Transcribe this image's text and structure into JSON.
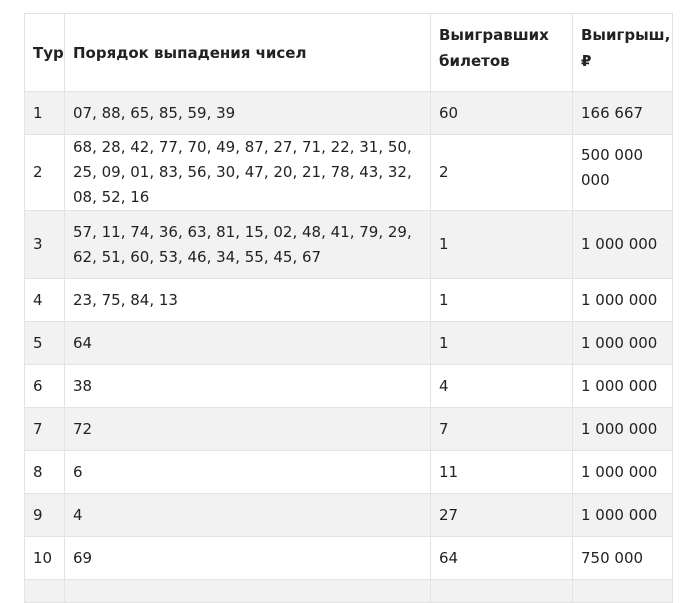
{
  "table": {
    "headers": {
      "tour": "Тур",
      "order": "Порядок выпадения чисел",
      "winners": "Выигравших билетов",
      "prize": "Выигрыш, ₽"
    },
    "rows": [
      {
        "tour": "1",
        "order": "07, 88, 65, 85, 59, 39",
        "winners": "60",
        "prize": "166 667"
      },
      {
        "tour": "2",
        "order": "68, 28, 42, 77, 70, 49, 87, 27, 71, 22, 31, 50, 25, 09, 01, 83, 56, 30, 47, 20, 21, 78, 43, 32, 08, 52, 16",
        "winners": "2",
        "prize": "500 000 000"
      },
      {
        "tour": "3",
        "order": "57, 11, 74, 36, 63, 81, 15, 02, 48, 41, 79, 29, 62, 51, 60, 53, 46, 34, 55, 45, 67",
        "winners": "1",
        "prize": "1 000 000"
      },
      {
        "tour": "4",
        "order": "23, 75, 84, 13",
        "winners": "1",
        "prize": "1 000 000"
      },
      {
        "tour": "5",
        "order": "64",
        "winners": "1",
        "prize": "1 000 000"
      },
      {
        "tour": "6",
        "order": "38",
        "winners": "4",
        "prize": "1 000 000"
      },
      {
        "tour": "7",
        "order": "72",
        "winners": "7",
        "prize": "1 000 000"
      },
      {
        "tour": "8",
        "order": "6",
        "winners": "11",
        "prize": "1 000 000"
      },
      {
        "tour": "9",
        "order": "4",
        "winners": "27",
        "prize": "1 000 000"
      },
      {
        "tour": "10",
        "order": "69",
        "winners": "64",
        "prize": "750 000"
      }
    ]
  }
}
